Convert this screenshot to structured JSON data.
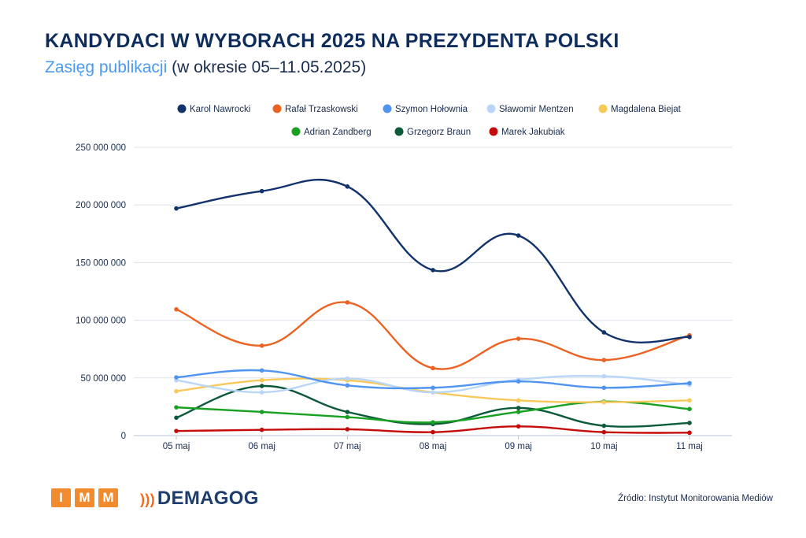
{
  "title": "KANDYDACI W WYBORACH 2025 NA PREZYDENTA POLSKI",
  "subtitle_highlight": "Zasięg publikacji",
  "subtitle_rest": " (w okresie 05–11.05.2025)",
  "source": "Źródło: Instytut Monitorowania Mediów",
  "logos": {
    "imm": [
      "I",
      "M",
      "M"
    ],
    "demagog": "DEMAGOG"
  },
  "chart_data": {
    "type": "line",
    "smooth": true,
    "categories": [
      "05 maj",
      "06 maj",
      "07 maj",
      "08 maj",
      "09 maj",
      "10 maj",
      "11 maj"
    ],
    "ylim": [
      0,
      250000000
    ],
    "yticks": [
      0,
      50000000,
      100000000,
      150000000,
      200000000,
      250000000
    ],
    "ytick_labels": [
      "0",
      "50 000 000",
      "100 000 000",
      "150 000 000",
      "200 000 000",
      "250 000 000"
    ],
    "grid": true,
    "legend_position": "top",
    "series": [
      {
        "name": "Karol Nawrocki",
        "color": "#12326b",
        "values": [
          197000000,
          212000000,
          216000000,
          143500000,
          173500000,
          89500000,
          85500000
        ]
      },
      {
        "name": "Rafał Trzaskowski",
        "color": "#ec6223",
        "values": [
          109500000,
          78000000,
          115500000,
          58500000,
          84000000,
          65500000,
          87000000
        ]
      },
      {
        "name": "Szymon Hołownia",
        "color": "#4f94f0",
        "values": [
          50500000,
          56500000,
          43500000,
          41500000,
          47000000,
          41500000,
          45500000
        ]
      },
      {
        "name": "Sławomir Mentzen",
        "color": "#b9d6f8",
        "values": [
          48000000,
          37500000,
          49500000,
          37500000,
          48500000,
          51500000,
          44000000
        ]
      },
      {
        "name": "Magdalena Biejat",
        "color": "#f8c95a",
        "values": [
          38500000,
          48000000,
          48000000,
          37500000,
          30500000,
          29000000,
          30500000
        ]
      },
      {
        "name": "Adrian Zandberg",
        "color": "#17a021",
        "values": [
          24500000,
          20500000,
          16000000,
          11500000,
          20500000,
          29500000,
          23000000
        ]
      },
      {
        "name": "Grzegorz Braun",
        "color": "#0d5a3a",
        "values": [
          15500000,
          43000000,
          20500000,
          10000000,
          24000000,
          8500000,
          11000000
        ]
      },
      {
        "name": "Marek Jakubiak",
        "color": "#c50a0a",
        "values": [
          4000000,
          5000000,
          5500000,
          3000000,
          8000000,
          3000000,
          2500000
        ]
      }
    ]
  }
}
